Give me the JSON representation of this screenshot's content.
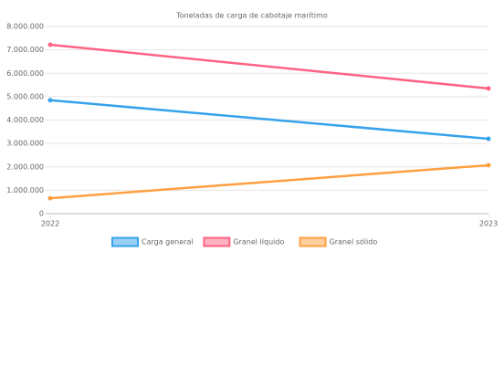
{
  "chart_data": {
    "type": "line",
    "title": "Toneladas de carga de cabotaje marítimo",
    "categories": [
      "2022",
      "2023"
    ],
    "series": [
      {
        "name": "Carga general",
        "color": "#36a2eb",
        "values": [
          4850000,
          3200000
        ]
      },
      {
        "name": "Granel líquido",
        "color": "#ff6384",
        "values": [
          7220000,
          5350000
        ]
      },
      {
        "name": "Granel sólido",
        "color": "#ff9f40",
        "values": [
          660000,
          2070000
        ]
      }
    ],
    "ylim": [
      0,
      8000000
    ],
    "yticks": [
      0,
      {
        "value": 1000000,
        "label": "1.000.000"
      },
      {
        "value": 2000000,
        "label": "2.000.000"
      },
      {
        "value": 3000000,
        "label": "3.000.000"
      },
      {
        "value": 4000000,
        "label": "4.000.000"
      },
      {
        "value": 5000000,
        "label": "5.000.000"
      },
      {
        "value": 6000000,
        "label": "6.000.000"
      },
      {
        "value": 7000000,
        "label": "7.000.000"
      },
      {
        "value": 8000000,
        "label": "8.000.000"
      }
    ],
    "grid": true,
    "legend": "bottom"
  }
}
